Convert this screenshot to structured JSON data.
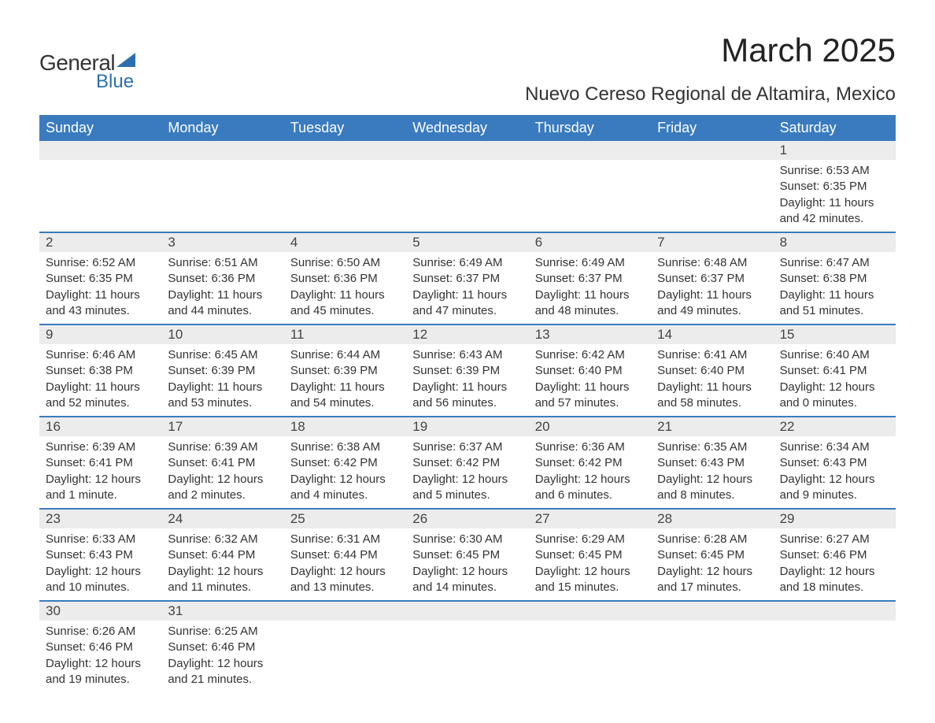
{
  "logo": {
    "text_general": "General",
    "text_blue": "Blue",
    "color": "#2c6fb0"
  },
  "header": {
    "title": "March 2025",
    "subtitle": "Nuevo Cereso Regional de Altamira, Mexico"
  },
  "calendar": {
    "type": "table",
    "header_bg": "#3a7bbf",
    "header_fg": "#ffffff",
    "daynum_bg": "#ececec",
    "separator_color": "#3a7bbf",
    "text_color": "#333333",
    "columns": [
      "Sunday",
      "Monday",
      "Tuesday",
      "Wednesday",
      "Thursday",
      "Friday",
      "Saturday"
    ],
    "weeks": [
      [
        null,
        null,
        null,
        null,
        null,
        null,
        {
          "day": "1",
          "sunrise": "Sunrise: 6:53 AM",
          "sunset": "Sunset: 6:35 PM",
          "daylight1": "Daylight: 11 hours",
          "daylight2": "and 42 minutes."
        }
      ],
      [
        {
          "day": "2",
          "sunrise": "Sunrise: 6:52 AM",
          "sunset": "Sunset: 6:35 PM",
          "daylight1": "Daylight: 11 hours",
          "daylight2": "and 43 minutes."
        },
        {
          "day": "3",
          "sunrise": "Sunrise: 6:51 AM",
          "sunset": "Sunset: 6:36 PM",
          "daylight1": "Daylight: 11 hours",
          "daylight2": "and 44 minutes."
        },
        {
          "day": "4",
          "sunrise": "Sunrise: 6:50 AM",
          "sunset": "Sunset: 6:36 PM",
          "daylight1": "Daylight: 11 hours",
          "daylight2": "and 45 minutes."
        },
        {
          "day": "5",
          "sunrise": "Sunrise: 6:49 AM",
          "sunset": "Sunset: 6:37 PM",
          "daylight1": "Daylight: 11 hours",
          "daylight2": "and 47 minutes."
        },
        {
          "day": "6",
          "sunrise": "Sunrise: 6:49 AM",
          "sunset": "Sunset: 6:37 PM",
          "daylight1": "Daylight: 11 hours",
          "daylight2": "and 48 minutes."
        },
        {
          "day": "7",
          "sunrise": "Sunrise: 6:48 AM",
          "sunset": "Sunset: 6:37 PM",
          "daylight1": "Daylight: 11 hours",
          "daylight2": "and 49 minutes."
        },
        {
          "day": "8",
          "sunrise": "Sunrise: 6:47 AM",
          "sunset": "Sunset: 6:38 PM",
          "daylight1": "Daylight: 11 hours",
          "daylight2": "and 51 minutes."
        }
      ],
      [
        {
          "day": "9",
          "sunrise": "Sunrise: 6:46 AM",
          "sunset": "Sunset: 6:38 PM",
          "daylight1": "Daylight: 11 hours",
          "daylight2": "and 52 minutes."
        },
        {
          "day": "10",
          "sunrise": "Sunrise: 6:45 AM",
          "sunset": "Sunset: 6:39 PM",
          "daylight1": "Daylight: 11 hours",
          "daylight2": "and 53 minutes."
        },
        {
          "day": "11",
          "sunrise": "Sunrise: 6:44 AM",
          "sunset": "Sunset: 6:39 PM",
          "daylight1": "Daylight: 11 hours",
          "daylight2": "and 54 minutes."
        },
        {
          "day": "12",
          "sunrise": "Sunrise: 6:43 AM",
          "sunset": "Sunset: 6:39 PM",
          "daylight1": "Daylight: 11 hours",
          "daylight2": "and 56 minutes."
        },
        {
          "day": "13",
          "sunrise": "Sunrise: 6:42 AM",
          "sunset": "Sunset: 6:40 PM",
          "daylight1": "Daylight: 11 hours",
          "daylight2": "and 57 minutes."
        },
        {
          "day": "14",
          "sunrise": "Sunrise: 6:41 AM",
          "sunset": "Sunset: 6:40 PM",
          "daylight1": "Daylight: 11 hours",
          "daylight2": "and 58 minutes."
        },
        {
          "day": "15",
          "sunrise": "Sunrise: 6:40 AM",
          "sunset": "Sunset: 6:41 PM",
          "daylight1": "Daylight: 12 hours",
          "daylight2": "and 0 minutes."
        }
      ],
      [
        {
          "day": "16",
          "sunrise": "Sunrise: 6:39 AM",
          "sunset": "Sunset: 6:41 PM",
          "daylight1": "Daylight: 12 hours",
          "daylight2": "and 1 minute."
        },
        {
          "day": "17",
          "sunrise": "Sunrise: 6:39 AM",
          "sunset": "Sunset: 6:41 PM",
          "daylight1": "Daylight: 12 hours",
          "daylight2": "and 2 minutes."
        },
        {
          "day": "18",
          "sunrise": "Sunrise: 6:38 AM",
          "sunset": "Sunset: 6:42 PM",
          "daylight1": "Daylight: 12 hours",
          "daylight2": "and 4 minutes."
        },
        {
          "day": "19",
          "sunrise": "Sunrise: 6:37 AM",
          "sunset": "Sunset: 6:42 PM",
          "daylight1": "Daylight: 12 hours",
          "daylight2": "and 5 minutes."
        },
        {
          "day": "20",
          "sunrise": "Sunrise: 6:36 AM",
          "sunset": "Sunset: 6:42 PM",
          "daylight1": "Daylight: 12 hours",
          "daylight2": "and 6 minutes."
        },
        {
          "day": "21",
          "sunrise": "Sunrise: 6:35 AM",
          "sunset": "Sunset: 6:43 PM",
          "daylight1": "Daylight: 12 hours",
          "daylight2": "and 8 minutes."
        },
        {
          "day": "22",
          "sunrise": "Sunrise: 6:34 AM",
          "sunset": "Sunset: 6:43 PM",
          "daylight1": "Daylight: 12 hours",
          "daylight2": "and 9 minutes."
        }
      ],
      [
        {
          "day": "23",
          "sunrise": "Sunrise: 6:33 AM",
          "sunset": "Sunset: 6:43 PM",
          "daylight1": "Daylight: 12 hours",
          "daylight2": "and 10 minutes."
        },
        {
          "day": "24",
          "sunrise": "Sunrise: 6:32 AM",
          "sunset": "Sunset: 6:44 PM",
          "daylight1": "Daylight: 12 hours",
          "daylight2": "and 11 minutes."
        },
        {
          "day": "25",
          "sunrise": "Sunrise: 6:31 AM",
          "sunset": "Sunset: 6:44 PM",
          "daylight1": "Daylight: 12 hours",
          "daylight2": "and 13 minutes."
        },
        {
          "day": "26",
          "sunrise": "Sunrise: 6:30 AM",
          "sunset": "Sunset: 6:45 PM",
          "daylight1": "Daylight: 12 hours",
          "daylight2": "and 14 minutes."
        },
        {
          "day": "27",
          "sunrise": "Sunrise: 6:29 AM",
          "sunset": "Sunset: 6:45 PM",
          "daylight1": "Daylight: 12 hours",
          "daylight2": "and 15 minutes."
        },
        {
          "day": "28",
          "sunrise": "Sunrise: 6:28 AM",
          "sunset": "Sunset: 6:45 PM",
          "daylight1": "Daylight: 12 hours",
          "daylight2": "and 17 minutes."
        },
        {
          "day": "29",
          "sunrise": "Sunrise: 6:27 AM",
          "sunset": "Sunset: 6:46 PM",
          "daylight1": "Daylight: 12 hours",
          "daylight2": "and 18 minutes."
        }
      ],
      [
        {
          "day": "30",
          "sunrise": "Sunrise: 6:26 AM",
          "sunset": "Sunset: 6:46 PM",
          "daylight1": "Daylight: 12 hours",
          "daylight2": "and 19 minutes."
        },
        {
          "day": "31",
          "sunrise": "Sunrise: 6:25 AM",
          "sunset": "Sunset: 6:46 PM",
          "daylight1": "Daylight: 12 hours",
          "daylight2": "and 21 minutes."
        },
        null,
        null,
        null,
        null,
        null
      ]
    ]
  }
}
